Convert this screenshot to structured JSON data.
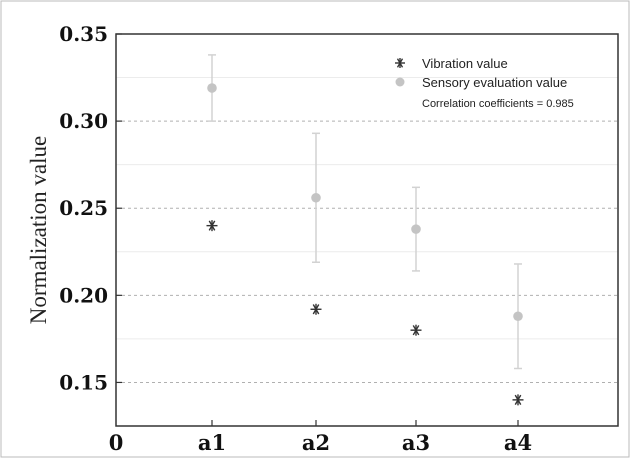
{
  "chart_data": {
    "type": "scatter",
    "title": "",
    "xlabel": "",
    "ylabel": "Normalization value",
    "categories": [
      "a1",
      "a2",
      "a3",
      "a4"
    ],
    "x_origin_label": "0",
    "ylim": [
      0.125,
      0.35
    ],
    "yticks": [
      "0.15",
      "0.20",
      "0.25",
      "0.30",
      "0.35"
    ],
    "grid": "horizontal-dashed",
    "legend_position": "top-right",
    "series": [
      {
        "name": "Vibration value",
        "marker": "asterisk",
        "color": "#333333",
        "values": [
          0.24,
          0.192,
          0.18,
          0.14
        ]
      },
      {
        "name": "Sensory evaluation value",
        "marker": "circle",
        "color": "#c4c4c4",
        "values": [
          0.319,
          0.256,
          0.238,
          0.188
        ],
        "error_low": [
          0.3,
          0.219,
          0.214,
          0.158
        ],
        "error_high": [
          0.338,
          0.293,
          0.262,
          0.218
        ]
      }
    ],
    "annotation": "Correlation coefficients = 0.985"
  }
}
